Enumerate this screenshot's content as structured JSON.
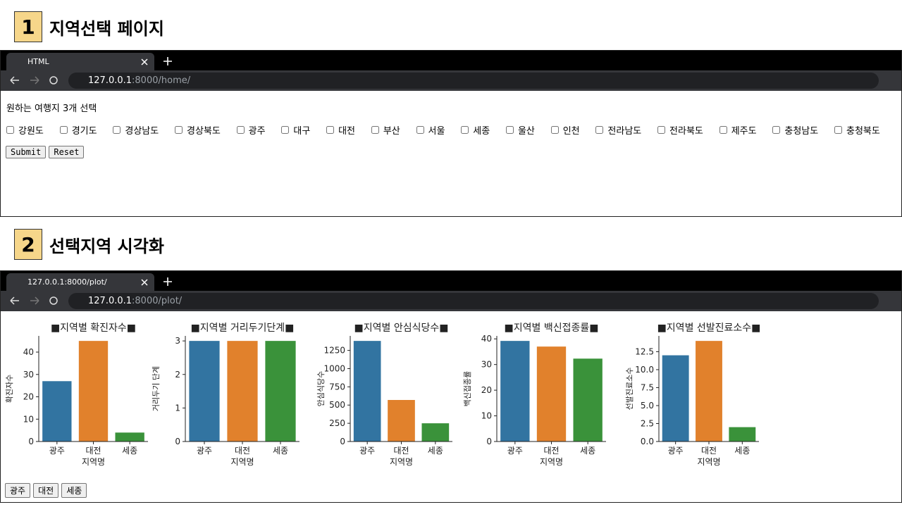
{
  "sections": [
    {
      "number": "1",
      "title": "지역선택 페이지"
    },
    {
      "number": "2",
      "title": "선택지역 시각화"
    }
  ],
  "home": {
    "tab_title": "HTML",
    "url_host": "127.0.0.1",
    "url_path": ":8000/home/",
    "prompt": "원하는 여행지 3개 선택",
    "regions": [
      "강원도",
      "경기도",
      "경상남도",
      "경상북도",
      "광주",
      "대구",
      "대전",
      "부산",
      "서울",
      "세종",
      "울산",
      "인천",
      "전라남도",
      "전라북도",
      "제주도",
      "충청남도",
      "충청북도"
    ],
    "buttons": [
      "Submit",
      "Reset"
    ]
  },
  "plot": {
    "tab_title": "127.0.0.1:8000/plot/",
    "url_host": "127.0.0.1",
    "url_path": ":8000/plot/",
    "buttons": [
      "광주",
      "대전",
      "세종"
    ]
  },
  "chart_data": [
    {
      "type": "bar",
      "title": "■지역별 확진자수■",
      "x_label": "지역명",
      "y_label": "확진자수",
      "categories": [
        "광주",
        "대전",
        "세종"
      ],
      "values": [
        27,
        45,
        4
      ],
      "colors": [
        "#3274a1",
        "#e1812c",
        "#3a923a"
      ],
      "ylim": [
        0,
        47.25
      ],
      "yticks": [
        0,
        10,
        20,
        30,
        40
      ]
    },
    {
      "type": "bar",
      "title": "■지역별 거리두기단계■",
      "x_label": "지역명",
      "y_label": "거리두기 단계",
      "categories": [
        "광주",
        "대전",
        "세종"
      ],
      "values": [
        3,
        3,
        3
      ],
      "colors": [
        "#3274a1",
        "#e1812c",
        "#3a923a"
      ],
      "ylim": [
        0,
        3.15
      ],
      "yticks": [
        0,
        1,
        2,
        3
      ]
    },
    {
      "type": "bar",
      "title": "■지역별 안심식당수■",
      "x_label": "지역명",
      "y_label": "안심식당수",
      "categories": [
        "광주",
        "대전",
        "세종"
      ],
      "values": [
        1380,
        570,
        250
      ],
      "colors": [
        "#3274a1",
        "#e1812c",
        "#3a923a"
      ],
      "ylim": [
        0,
        1449
      ],
      "yticks": [
        0,
        250,
        500,
        750,
        1000,
        1250
      ]
    },
    {
      "type": "bar",
      "title": "■지역별 백신접종률■",
      "x_label": "지역명",
      "y_label": "백신접종률",
      "categories": [
        "광주",
        "대전",
        "세종"
      ],
      "values": [
        39.2,
        37.0,
        32.3
      ],
      "colors": [
        "#3274a1",
        "#e1812c",
        "#3a923a"
      ],
      "ylim": [
        0,
        41.16
      ],
      "yticks": [
        0,
        10,
        20,
        30,
        40
      ]
    },
    {
      "type": "bar",
      "title": "■지역별 선발진료소수■",
      "x_label": "지역명",
      "y_label": "선발진료소수",
      "categories": [
        "광주",
        "대전",
        "세종"
      ],
      "values": [
        12,
        14,
        2
      ],
      "colors": [
        "#3274a1",
        "#e1812c",
        "#3a923a"
      ],
      "ylim": [
        0,
        14.7
      ],
      "yticks": [
        {
          "value": 0,
          "label": "0.0"
        },
        {
          "value": 2.5,
          "label": "2.5"
        },
        {
          "value": 5,
          "label": "5.0"
        },
        {
          "value": 7.5,
          "label": "7.5"
        },
        {
          "value": 10,
          "label": "10.0"
        },
        {
          "value": 12.5,
          "label": "12.5"
        }
      ]
    }
  ]
}
